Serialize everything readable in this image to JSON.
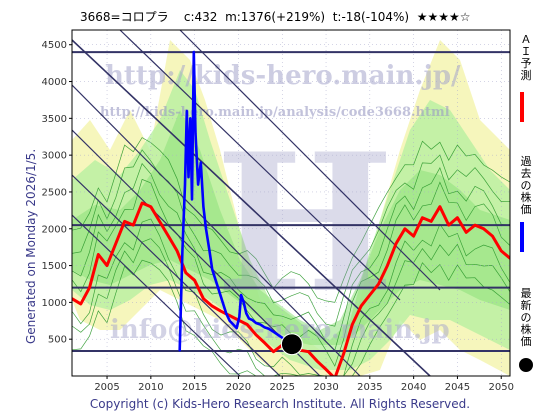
{
  "header": {
    "code_name": "3668=コロプラ",
    "c_label": "c:432",
    "m_label": "m:1376(+219%)",
    "t_label": "t:-18(-104%)",
    "stars": "★★★★☆"
  },
  "generated_note": "Generated on Monday 2026/1/5.",
  "copyright": "Copyright (c) Kids-Hero Research Institute. All Rights Reserved.",
  "watermarks": {
    "url_big": "http://kids-hero.main.jp/",
    "url_small": "http://kids-hero.main.jp/analysis/code3668.html",
    "email": "info@kids-hero.main.jp"
  },
  "legend": {
    "ai_forecast": "ＡＩ予測",
    "past_price": "過去の株価",
    "latest_price": "最新の株価"
  },
  "colors": {
    "forecast": "#ff0000",
    "past": "#0000ff",
    "bands_light": "#b8f0a0",
    "bands_yellow": "#f5f5b0",
    "grid": "#333366"
  },
  "chart_data": {
    "type": "line",
    "xlim": [
      2001,
      2051
    ],
    "ylim": [
      0,
      4700
    ],
    "x_ticks": [
      2005,
      2010,
      2015,
      2020,
      2025,
      2030,
      2035,
      2040,
      2045,
      2050
    ],
    "y_ticks": [
      500,
      1000,
      1500,
      2000,
      2500,
      3000,
      3500,
      4000,
      4500
    ],
    "horizontal_lines": [
      4400,
      2050,
      1200,
      340
    ],
    "latest_point": {
      "x": 2026.1,
      "y": 432
    },
    "series": [
      {
        "name": "ＡＩ予測",
        "color": "#ff0000",
        "points": [
          [
            2001,
            1050
          ],
          [
            2002,
            980
          ],
          [
            2003,
            1200
          ],
          [
            2004,
            1650
          ],
          [
            2005,
            1500
          ],
          [
            2006,
            1800
          ],
          [
            2007,
            2100
          ],
          [
            2008,
            2050
          ],
          [
            2009,
            2350
          ],
          [
            2010,
            2300
          ],
          [
            2011,
            2100
          ],
          [
            2012,
            1900
          ],
          [
            2013,
            1700
          ],
          [
            2014,
            1400
          ],
          [
            2015,
            1300
          ],
          [
            2016,
            1050
          ],
          [
            2017,
            950
          ],
          [
            2018,
            880
          ],
          [
            2019,
            820
          ],
          [
            2020,
            760
          ],
          [
            2021,
            700
          ],
          [
            2022,
            560
          ],
          [
            2023,
            450
          ],
          [
            2024,
            330
          ],
          [
            2025,
            420
          ],
          [
            2026,
            400
          ],
          [
            2027,
            350
          ],
          [
            2028,
            330
          ],
          [
            2029,
            200
          ],
          [
            2030,
            90
          ],
          [
            2031,
            -30
          ],
          [
            2032,
            300
          ],
          [
            2033,
            700
          ],
          [
            2034,
            950
          ],
          [
            2035,
            1100
          ],
          [
            2036,
            1250
          ],
          [
            2037,
            1500
          ],
          [
            2038,
            1800
          ],
          [
            2039,
            2000
          ],
          [
            2040,
            1900
          ],
          [
            2041,
            2150
          ],
          [
            2042,
            2100
          ],
          [
            2043,
            2300
          ],
          [
            2044,
            2050
          ],
          [
            2045,
            2150
          ],
          [
            2046,
            1950
          ],
          [
            2047,
            2050
          ],
          [
            2048,
            2000
          ],
          [
            2049,
            1900
          ],
          [
            2050,
            1700
          ],
          [
            2051,
            1600
          ]
        ]
      },
      {
        "name": "過去の株価",
        "color": "#0000ff",
        "points": [
          [
            2013.3,
            350
          ],
          [
            2013.6,
            1700
          ],
          [
            2013.9,
            2600
          ],
          [
            2014.1,
            3600
          ],
          [
            2014.3,
            2700
          ],
          [
            2014.5,
            3500
          ],
          [
            2014.7,
            2400
          ],
          [
            2014.9,
            4400
          ],
          [
            2015.1,
            3300
          ],
          [
            2015.4,
            2600
          ],
          [
            2015.7,
            2900
          ],
          [
            2016.0,
            2300
          ],
          [
            2016.3,
            2000
          ],
          [
            2016.7,
            1700
          ],
          [
            2017.0,
            1450
          ],
          [
            2017.4,
            1300
          ],
          [
            2017.8,
            1150
          ],
          [
            2018.2,
            1000
          ],
          [
            2018.6,
            850
          ],
          [
            2019.0,
            750
          ],
          [
            2019.4,
            700
          ],
          [
            2019.8,
            650
          ],
          [
            2020.1,
            800
          ],
          [
            2020.3,
            1100
          ],
          [
            2020.6,
            1000
          ],
          [
            2020.9,
            850
          ],
          [
            2021.2,
            780
          ],
          [
            2021.6,
            760
          ],
          [
            2022.0,
            720
          ],
          [
            2022.5,
            700
          ],
          [
            2023.0,
            660
          ],
          [
            2023.5,
            640
          ],
          [
            2024.0,
            600
          ],
          [
            2024.5,
            560
          ],
          [
            2025.0,
            520
          ],
          [
            2025.5,
            480
          ],
          [
            2026.1,
            432
          ]
        ]
      }
    ]
  }
}
